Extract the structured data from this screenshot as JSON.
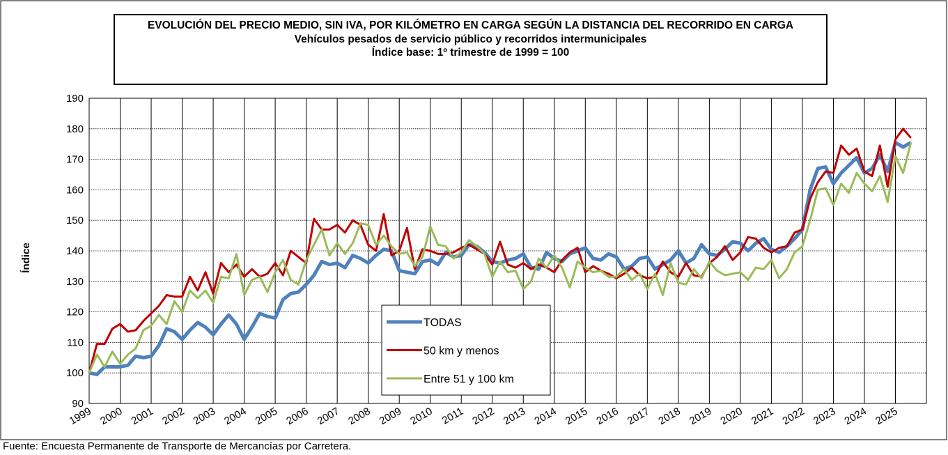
{
  "chart_data": {
    "type": "line",
    "title": "EVOLUCIÓN DEL PRECIO MEDIO, SIN IVA, POR KILÓMETRO EN CARGA SEGÚN LA DISTANCIA DEL RECORRIDO EN CARGA",
    "subtitle": "Vehículos pesados de servicio público y recorridos intermunicipales",
    "base_note": "Índice base: 1º trimestre de 1999 = 100",
    "y_label": "Índice",
    "source": "Fuente: Encuesta Permanente de Transporte de Mercancías por Carretera.",
    "categories": [
      "1999",
      null,
      null,
      null,
      "2000",
      null,
      null,
      null,
      "2001",
      null,
      null,
      null,
      "2002",
      null,
      null,
      null,
      "2003",
      null,
      null,
      null,
      "2004",
      null,
      null,
      null,
      "2005",
      null,
      null,
      null,
      "2006",
      null,
      null,
      null,
      "2007",
      null,
      null,
      null,
      "2008",
      null,
      null,
      null,
      "2009",
      null,
      null,
      null,
      "2010",
      null,
      null,
      null,
      "2011",
      null,
      null,
      null,
      "2012",
      null,
      null,
      null,
      "2013",
      null,
      null,
      null,
      "2014",
      null,
      null,
      null,
      "2015",
      null,
      null,
      null,
      "2016",
      null,
      null,
      null,
      "2017",
      null,
      null,
      null,
      "2018",
      null,
      null,
      null,
      "2019",
      null,
      null,
      null,
      "2020",
      null,
      null,
      null,
      "2021",
      null,
      null,
      null,
      "2022",
      null,
      null,
      null,
      "2023",
      null,
      null,
      null,
      "2024",
      null,
      null,
      null,
      "2025",
      null,
      null
    ],
    "series": [
      {
        "name": "TODAS",
        "color": "#4f81bd",
        "values": [
          100,
          99.5,
          102,
          102,
          102,
          102.5,
          105.5,
          105,
          105.5,
          109,
          114.5,
          113.5,
          111,
          114,
          116.5,
          115,
          112.5,
          116,
          119,
          116,
          111,
          115,
          119.5,
          118.5,
          118,
          124,
          126,
          126.5,
          129,
          132,
          136.5,
          135.5,
          136,
          134.5,
          138.5,
          137.5,
          136,
          138.5,
          140.5,
          140,
          133.5,
          133,
          132.5,
          136.5,
          137,
          135.5,
          139.5,
          138,
          138.5,
          142,
          141.5,
          139.5,
          136.5,
          136,
          137,
          137.5,
          139,
          134.5,
          134,
          139.5,
          137.5,
          136.5,
          139,
          140,
          141,
          137.5,
          137,
          139,
          138,
          134,
          135,
          137.5,
          138,
          134,
          135.5,
          137,
          140,
          136,
          137.5,
          142,
          139,
          138.5,
          140.5,
          143,
          142.5,
          140,
          142.5,
          144,
          140.5,
          139.5,
          141.5,
          144,
          147,
          160,
          167,
          167.5,
          162,
          165.5,
          168,
          170.5,
          165.5,
          167,
          171.5,
          166,
          175.5,
          174,
          175.5
        ]
      },
      {
        "name": "50 km y menos",
        "color": "#c00000",
        "values": [
          100,
          109.5,
          109.5,
          114.5,
          116,
          113.5,
          114,
          117,
          119.5,
          122,
          125.5,
          125,
          125,
          131.5,
          127,
          133,
          126,
          136,
          133,
          135.5,
          131.5,
          134,
          131.5,
          132.5,
          136,
          132,
          140,
          138,
          136,
          150.5,
          147,
          147,
          148.5,
          146,
          150,
          148.5,
          142,
          140,
          152,
          138.5,
          140,
          147.5,
          134,
          140.5,
          140,
          139,
          139,
          139.5,
          141,
          142,
          140.5,
          139,
          135.5,
          143,
          135.5,
          134.5,
          136,
          134,
          135.5,
          134.5,
          133,
          137,
          139.5,
          141,
          133,
          135,
          133.5,
          132.5,
          131,
          132.5,
          134.5,
          132,
          131,
          131.5,
          136.5,
          133,
          131.5,
          136,
          132,
          131.5,
          136,
          138,
          141.5,
          137,
          139.5,
          144.5,
          144,
          141,
          139.5,
          141,
          141.5,
          146,
          147,
          157,
          162.5,
          166,
          165.5,
          174.5,
          171.5,
          173.5,
          166,
          164.5,
          174.5,
          161,
          176.5,
          180,
          177
        ]
      },
      {
        "name": "Entre 51 y 100 km",
        "color": "#9bbb59",
        "values": [
          100,
          106,
          102,
          107,
          103,
          106,
          108,
          114,
          115.5,
          119,
          116,
          123.5,
          120,
          127,
          124.5,
          127,
          123,
          131.5,
          131,
          139,
          125.5,
          130.5,
          131.5,
          126.5,
          133,
          137,
          130.5,
          129,
          137,
          142,
          147,
          138.5,
          142.5,
          139,
          142.5,
          149,
          148.5,
          142,
          145,
          141.5,
          139,
          139.5,
          135,
          138,
          148,
          142,
          141.5,
          137.5,
          139.5,
          143.5,
          141.5,
          139,
          131.5,
          136.5,
          133,
          133.5,
          127.5,
          130,
          137.5,
          134.5,
          138.5,
          134.5,
          128,
          136.5,
          134.5,
          133,
          133.5,
          131.5,
          131.5,
          134,
          130.5,
          132.5,
          127.5,
          132.5,
          125.5,
          136,
          129.5,
          129,
          134,
          131,
          136.5,
          133.5,
          132,
          132.5,
          133,
          130.5,
          134.5,
          134,
          137,
          131,
          134,
          139.5,
          141.5,
          150,
          160,
          160.5,
          155,
          162,
          159,
          165.5,
          162,
          159.5,
          164.5,
          156,
          171,
          165.5,
          175.5
        ]
      }
    ],
    "ylim": [
      90,
      190
    ],
    "yticks": [
      90,
      100,
      110,
      120,
      130,
      140,
      150,
      160,
      170,
      180,
      190
    ],
    "grid": true
  }
}
